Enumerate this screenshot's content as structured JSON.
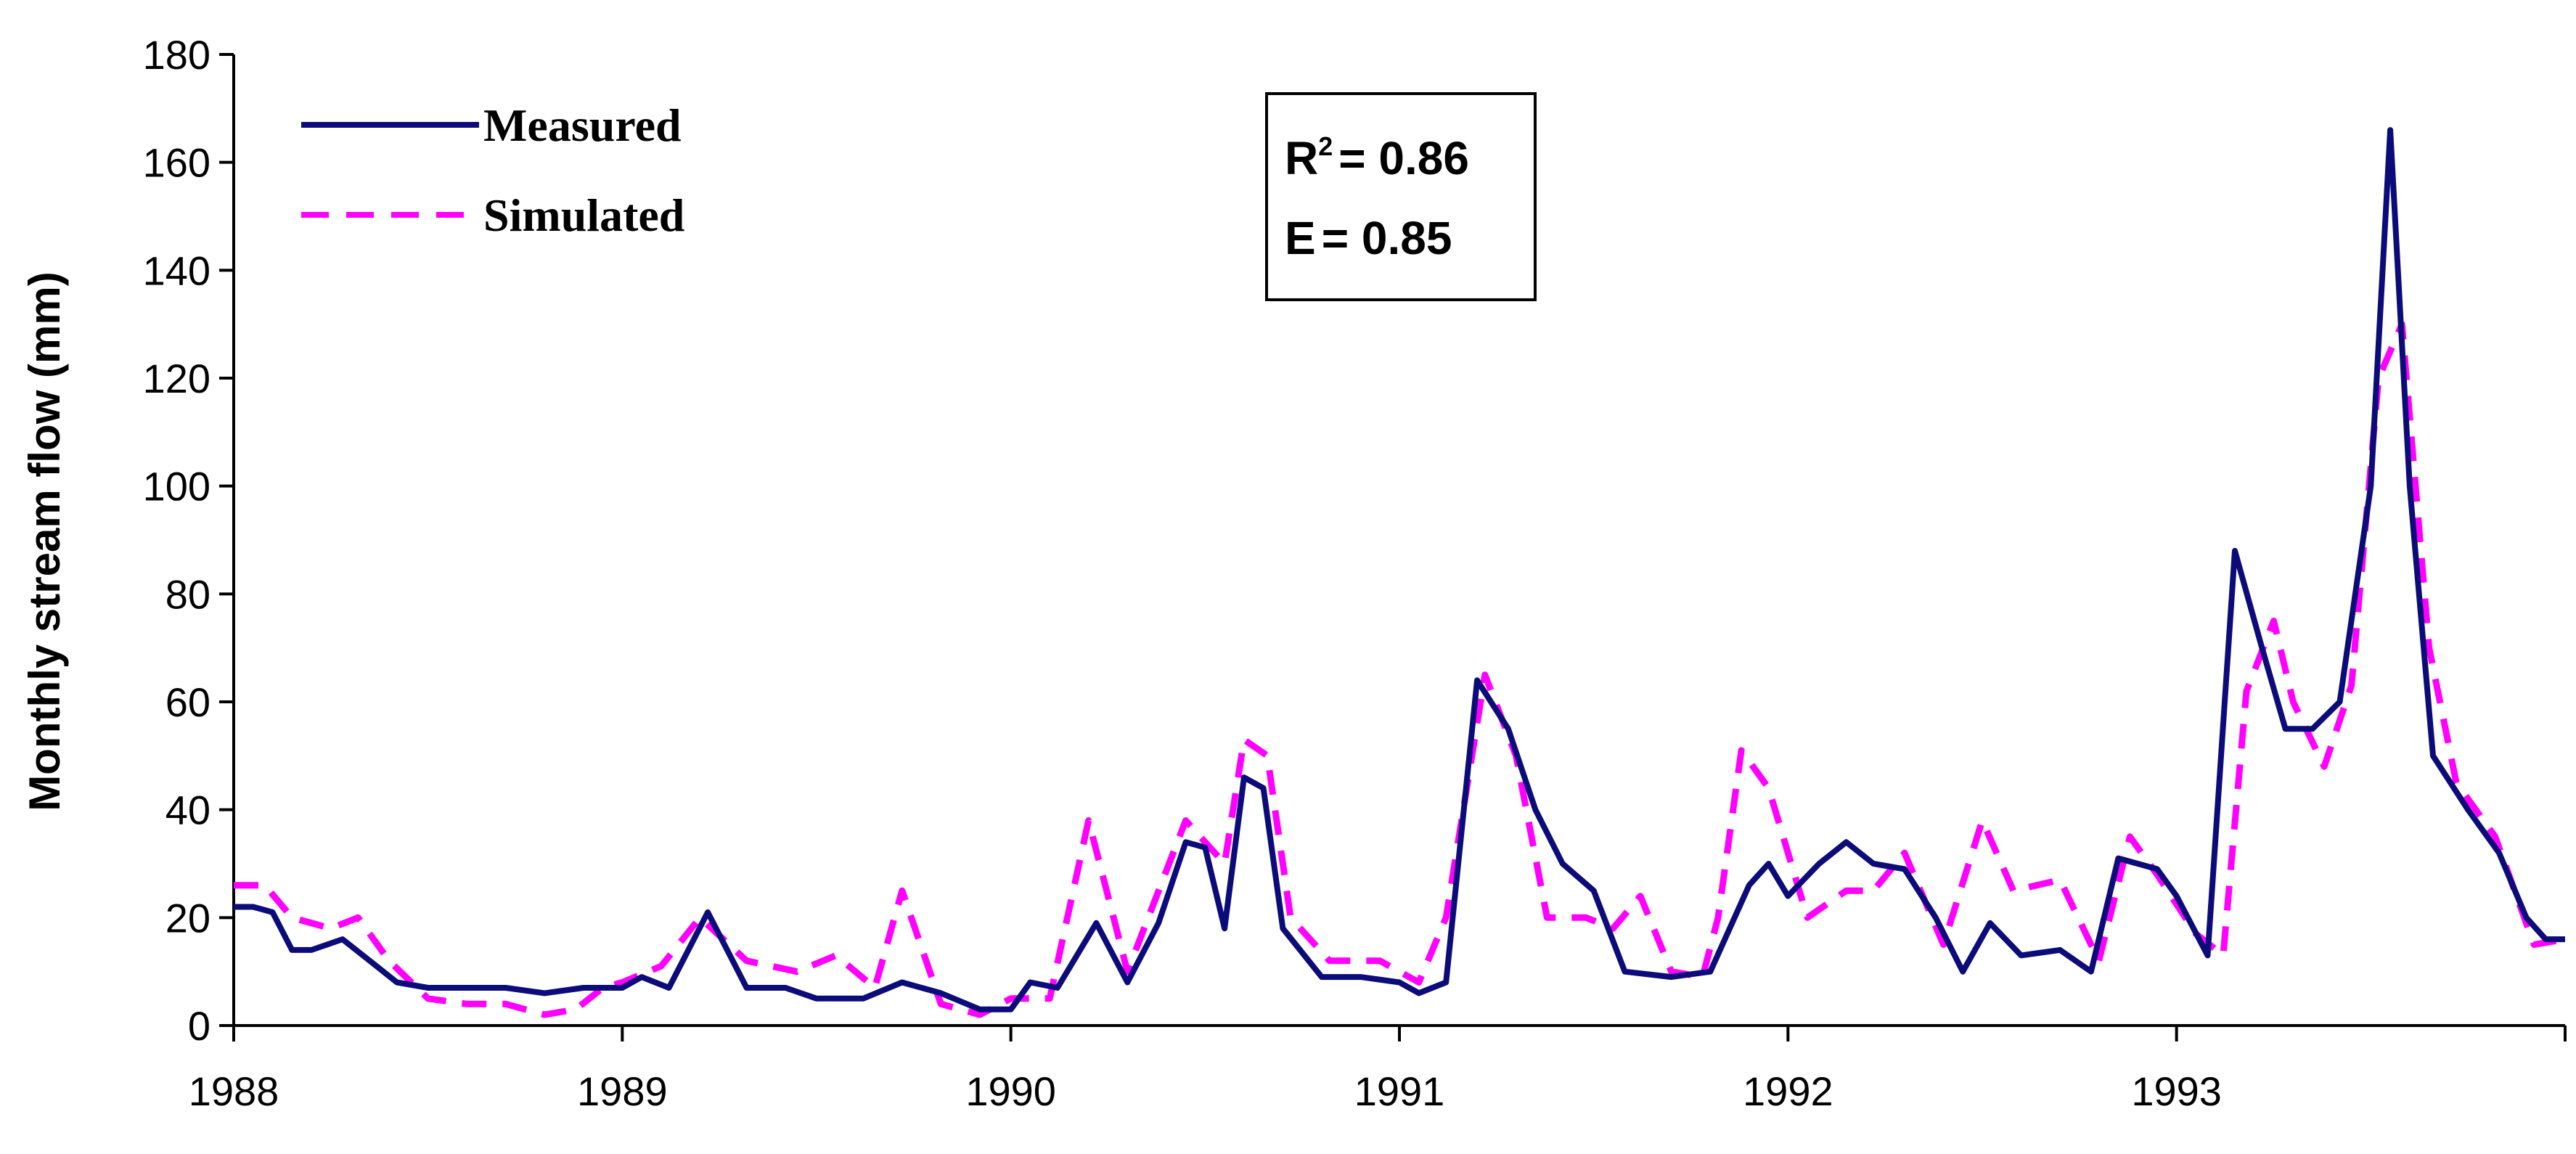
{
  "chart_data": {
    "type": "line",
    "xlabel": "",
    "ylabel": "Monthly stream flow (mm)",
    "xlim": [
      1988,
      1994
    ],
    "ylim": [
      0,
      180
    ],
    "x_ticks": [
      "1988",
      "1989",
      "1990",
      "1991",
      "1992",
      "1993"
    ],
    "y_ticks": [
      "0",
      "20",
      "40",
      "60",
      "80",
      "100",
      "120",
      "140",
      "160",
      "180"
    ],
    "grid": false,
    "legend": "top-left",
    "series": [
      {
        "name": "Measured",
        "color": "#0b0b7a",
        "style": "solid",
        "points": [
          [
            1988.0,
            22
          ],
          [
            1988.05,
            22
          ],
          [
            1988.1,
            21
          ],
          [
            1988.15,
            14
          ],
          [
            1988.2,
            14
          ],
          [
            1988.28,
            16
          ],
          [
            1988.35,
            12
          ],
          [
            1988.42,
            8
          ],
          [
            1988.5,
            7
          ],
          [
            1988.6,
            7
          ],
          [
            1988.7,
            7
          ],
          [
            1988.8,
            6
          ],
          [
            1988.9,
            7
          ],
          [
            1989.0,
            7
          ],
          [
            1989.05,
            9
          ],
          [
            1989.12,
            7
          ],
          [
            1989.22,
            21
          ],
          [
            1989.32,
            7
          ],
          [
            1989.42,
            7
          ],
          [
            1989.5,
            5
          ],
          [
            1989.62,
            5
          ],
          [
            1989.72,
            8
          ],
          [
            1989.82,
            6
          ],
          [
            1989.92,
            3
          ],
          [
            1990.0,
            3
          ],
          [
            1990.05,
            8
          ],
          [
            1990.12,
            7
          ],
          [
            1990.22,
            19
          ],
          [
            1990.3,
            8
          ],
          [
            1990.38,
            19
          ],
          [
            1990.45,
            34
          ],
          [
            1990.5,
            33
          ],
          [
            1990.55,
            18
          ],
          [
            1990.6,
            46
          ],
          [
            1990.65,
            44
          ],
          [
            1990.7,
            18
          ],
          [
            1990.8,
            9
          ],
          [
            1990.9,
            9
          ],
          [
            1991.0,
            8
          ],
          [
            1991.05,
            6
          ],
          [
            1991.12,
            8
          ],
          [
            1991.2,
            64
          ],
          [
            1991.28,
            55
          ],
          [
            1991.35,
            40
          ],
          [
            1991.42,
            30
          ],
          [
            1991.5,
            25
          ],
          [
            1991.58,
            10
          ],
          [
            1991.7,
            9
          ],
          [
            1991.8,
            10
          ],
          [
            1991.9,
            26
          ],
          [
            1991.95,
            30
          ],
          [
            1992.0,
            24
          ],
          [
            1992.08,
            30
          ],
          [
            1992.15,
            34
          ],
          [
            1992.22,
            30
          ],
          [
            1992.3,
            29
          ],
          [
            1992.38,
            20
          ],
          [
            1992.45,
            10
          ],
          [
            1992.52,
            19
          ],
          [
            1992.6,
            13
          ],
          [
            1992.7,
            14
          ],
          [
            1992.78,
            10
          ],
          [
            1992.85,
            31
          ],
          [
            1992.95,
            29
          ],
          [
            1993.0,
            24
          ],
          [
            1993.08,
            13
          ],
          [
            1993.15,
            88
          ],
          [
            1993.22,
            70
          ],
          [
            1993.28,
            55
          ],
          [
            1993.35,
            55
          ],
          [
            1993.42,
            60
          ],
          [
            1993.5,
            100
          ],
          [
            1993.55,
            166
          ],
          [
            1993.6,
            100
          ],
          [
            1993.66,
            50
          ],
          [
            1993.75,
            40
          ],
          [
            1993.83,
            32
          ],
          [
            1993.9,
            20
          ],
          [
            1993.95,
            16
          ],
          [
            1994.0,
            16
          ]
        ]
      },
      {
        "name": "Simulated",
        "color": "#ff00ff",
        "style": "dashed",
        "points": [
          [
            1988.0,
            26
          ],
          [
            1988.08,
            26
          ],
          [
            1988.15,
            20
          ],
          [
            1988.25,
            18
          ],
          [
            1988.32,
            20
          ],
          [
            1988.4,
            12
          ],
          [
            1988.5,
            5
          ],
          [
            1988.6,
            4
          ],
          [
            1988.7,
            4
          ],
          [
            1988.8,
            2
          ],
          [
            1988.88,
            3
          ],
          [
            1988.95,
            7
          ],
          [
            1989.0,
            8
          ],
          [
            1989.1,
            11
          ],
          [
            1989.2,
            20
          ],
          [
            1989.32,
            12
          ],
          [
            1989.45,
            10
          ],
          [
            1989.55,
            13
          ],
          [
            1989.65,
            7
          ],
          [
            1989.72,
            25
          ],
          [
            1989.82,
            4
          ],
          [
            1989.92,
            2
          ],
          [
            1990.0,
            5
          ],
          [
            1990.1,
            5
          ],
          [
            1990.2,
            38
          ],
          [
            1990.3,
            10
          ],
          [
            1990.45,
            38
          ],
          [
            1990.55,
            30
          ],
          [
            1990.6,
            53
          ],
          [
            1990.66,
            50
          ],
          [
            1990.72,
            20
          ],
          [
            1990.82,
            12
          ],
          [
            1990.95,
            12
          ],
          [
            1991.05,
            8
          ],
          [
            1991.12,
            20
          ],
          [
            1991.22,
            65
          ],
          [
            1991.3,
            50
          ],
          [
            1991.38,
            20
          ],
          [
            1991.48,
            20
          ],
          [
            1991.55,
            18
          ],
          [
            1991.62,
            24
          ],
          [
            1991.7,
            10
          ],
          [
            1991.78,
            9
          ],
          [
            1991.82,
            20
          ],
          [
            1991.88,
            51
          ],
          [
            1991.95,
            44
          ],
          [
            1992.05,
            20
          ],
          [
            1992.15,
            25
          ],
          [
            1992.22,
            25
          ],
          [
            1992.3,
            32
          ],
          [
            1992.4,
            15
          ],
          [
            1992.5,
            38
          ],
          [
            1992.58,
            25
          ],
          [
            1992.7,
            27
          ],
          [
            1992.8,
            12
          ],
          [
            1992.88,
            35
          ],
          [
            1992.95,
            28
          ],
          [
            1993.05,
            17
          ],
          [
            1993.12,
            13
          ],
          [
            1993.18,
            62
          ],
          [
            1993.25,
            75
          ],
          [
            1993.3,
            60
          ],
          [
            1993.38,
            48
          ],
          [
            1993.45,
            63
          ],
          [
            1993.52,
            120
          ],
          [
            1993.58,
            130
          ],
          [
            1993.65,
            70
          ],
          [
            1993.72,
            45
          ],
          [
            1993.82,
            35
          ],
          [
            1993.92,
            15
          ],
          [
            1994.0,
            16
          ]
        ]
      }
    ],
    "annotations": [
      {
        "label": "R",
        "superscript": "2",
        "value": "= 0.86"
      },
      {
        "label": "E",
        "value": "= 0.85"
      }
    ]
  }
}
